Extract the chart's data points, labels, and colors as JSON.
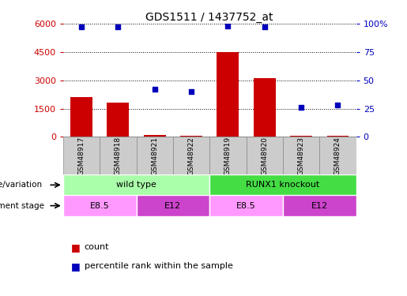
{
  "title": "GDS1511 / 1437752_at",
  "samples": [
    "GSM48917",
    "GSM48918",
    "GSM48921",
    "GSM48922",
    "GSM48919",
    "GSM48920",
    "GSM48923",
    "GSM48924"
  ],
  "counts": [
    2100,
    1800,
    80,
    60,
    4500,
    3100,
    70,
    50
  ],
  "percentile_ranks": [
    97,
    97,
    42,
    40,
    98,
    97,
    26,
    28
  ],
  "ylim_left": [
    0,
    6000
  ],
  "ylim_right": [
    0,
    100
  ],
  "yticks_left": [
    0,
    1500,
    3000,
    4500,
    6000
  ],
  "yticks_right": [
    0,
    25,
    50,
    75,
    100
  ],
  "ytick_right_labels": [
    "0",
    "25",
    "50",
    "75",
    "100%"
  ],
  "bar_color": "#cc0000",
  "scatter_color": "#0000bb",
  "grid_color": "black",
  "genotype_row": [
    {
      "label": "wild type",
      "start": 0,
      "end": 4,
      "color": "#aaffaa"
    },
    {
      "label": "RUNX1 knockout",
      "start": 4,
      "end": 8,
      "color": "#44dd44"
    }
  ],
  "development_row": [
    {
      "label": "E8.5",
      "start": 0,
      "end": 2,
      "color": "#ff99ff"
    },
    {
      "label": "E12",
      "start": 2,
      "end": 4,
      "color": "#cc44cc"
    },
    {
      "label": "E8.5",
      "start": 4,
      "end": 6,
      "color": "#ff99ff"
    },
    {
      "label": "E12",
      "start": 6,
      "end": 8,
      "color": "#cc44cc"
    }
  ],
  "legend_count_color": "#cc0000",
  "legend_pct_color": "#0000bb",
  "left_axis_color": "#cc0000",
  "right_axis_color": "#0000bb",
  "sample_box_color": "#cccccc",
  "sample_box_edge": "#888888"
}
